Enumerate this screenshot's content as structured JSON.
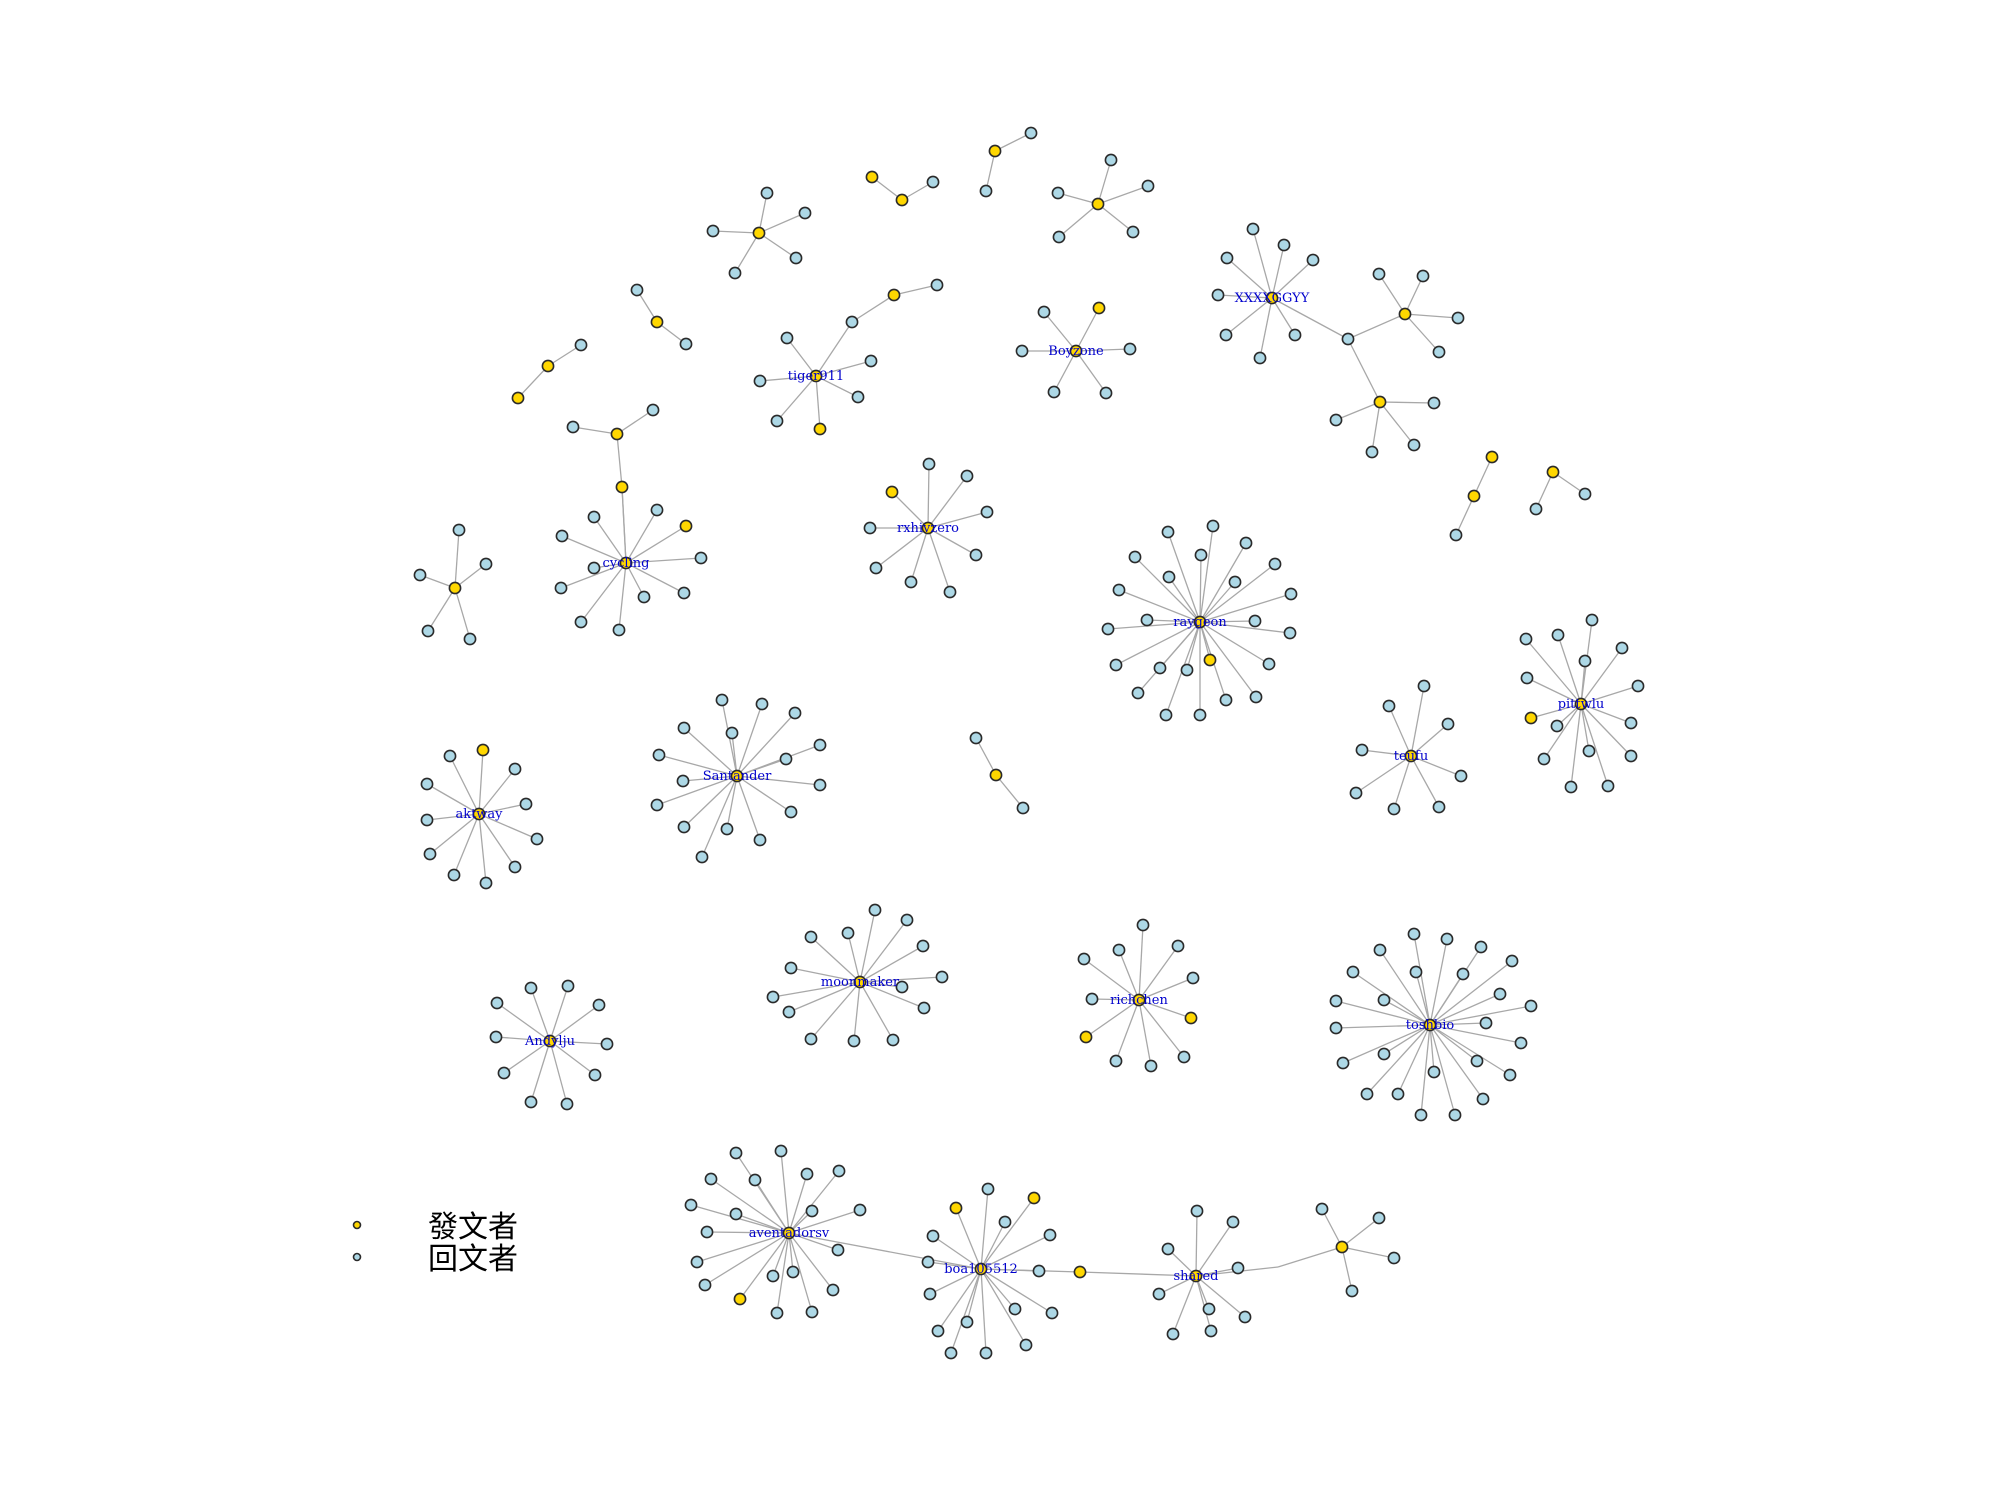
{
  "colors": {
    "poster": "#ffd700",
    "replier": "#add8e6",
    "edge": "#a8a8a8",
    "label": "#0000cc"
  },
  "legend": {
    "items": [
      {
        "label": "發文者",
        "role": "poster"
      },
      {
        "label": "回文者",
        "role": "replier"
      }
    ]
  },
  "hub_labels": [
    "tiger911",
    "Boyzone",
    "XXXXGGYY",
    "rxhivzero",
    "cycling",
    "raygeon",
    "pittwlu",
    "teufu",
    "Santander",
    "aktway",
    "moonmaker",
    "richchen",
    "toshbio",
    "Andylju",
    "aventadorsv",
    "boa105512",
    "shared"
  ]
}
